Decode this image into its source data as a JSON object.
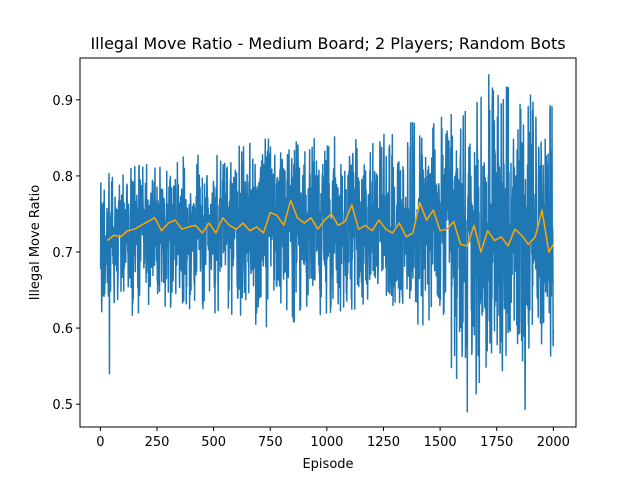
{
  "chart_data": {
    "type": "line",
    "title": "Illegal Move Ratio - Medium Board; 2 Players; Random Bots",
    "xlabel": "Episode",
    "ylabel": "Illegal Move Ratio",
    "xlim": [
      -90,
      2100
    ],
    "ylim": [
      0.47,
      0.955
    ],
    "xticks": [
      0,
      250,
      500,
      750,
      1000,
      1250,
      1500,
      1750,
      2000
    ],
    "yticks": [
      0.5,
      0.6,
      0.7,
      0.8,
      0.9
    ],
    "ytick_labels": [
      "0.5",
      "0.6",
      "0.7",
      "0.8",
      "0.9"
    ],
    "grid": false,
    "legend": "none",
    "series": [
      {
        "role": "raw",
        "color": "#1f77b4",
        "x_start": 1,
        "x_end": 2000,
        "length": 2000,
        "envelope_x": [
          0,
          250,
          500,
          750,
          1000,
          1250,
          1500,
          1625,
          1750,
          1875,
          2000
        ],
        "envelope_low": [
          0.6,
          0.63,
          0.62,
          0.6,
          0.62,
          0.63,
          0.58,
          0.5,
          0.55,
          0.52,
          0.56
        ],
        "envelope_high": [
          0.8,
          0.82,
          0.83,
          0.85,
          0.85,
          0.86,
          0.88,
          0.89,
          0.92,
          0.91,
          0.89
        ],
        "mean_level": 0.733,
        "annotated_points": [
          {
            "x": 40,
            "y": 0.54
          },
          {
            "x": 1620,
            "y": 0.49
          },
          {
            "x": 1715,
            "y": 0.933
          },
          {
            "x": 1875,
            "y": 0.493
          },
          {
            "x": 1985,
            "y": 0.887
          }
        ]
      },
      {
        "role": "moving-average",
        "color": "#ffa500",
        "x": [
          30,
          60,
          90,
          120,
          150,
          180,
          210,
          240,
          270,
          300,
          330,
          360,
          390,
          420,
          450,
          480,
          510,
          540,
          570,
          600,
          630,
          660,
          690,
          720,
          750,
          780,
          810,
          840,
          870,
          900,
          930,
          960,
          990,
          1020,
          1050,
          1080,
          1110,
          1140,
          1170,
          1200,
          1230,
          1260,
          1290,
          1320,
          1350,
          1380,
          1410,
          1440,
          1470,
          1500,
          1530,
          1560,
          1590,
          1620,
          1650,
          1680,
          1710,
          1740,
          1770,
          1800,
          1830,
          1860,
          1890,
          1920,
          1950,
          1980,
          2000
        ],
        "y": [
          0.715,
          0.722,
          0.72,
          0.728,
          0.73,
          0.735,
          0.74,
          0.745,
          0.728,
          0.738,
          0.742,
          0.73,
          0.733,
          0.735,
          0.725,
          0.738,
          0.725,
          0.745,
          0.735,
          0.73,
          0.738,
          0.728,
          0.733,
          0.725,
          0.752,
          0.748,
          0.735,
          0.768,
          0.745,
          0.738,
          0.745,
          0.73,
          0.742,
          0.75,
          0.735,
          0.74,
          0.762,
          0.73,
          0.735,
          0.728,
          0.742,
          0.73,
          0.725,
          0.738,
          0.72,
          0.725,
          0.765,
          0.742,
          0.755,
          0.728,
          0.73,
          0.74,
          0.71,
          0.708,
          0.735,
          0.7,
          0.728,
          0.715,
          0.72,
          0.708,
          0.73,
          0.722,
          0.71,
          0.72,
          0.755,
          0.7,
          0.71
        ]
      }
    ]
  }
}
